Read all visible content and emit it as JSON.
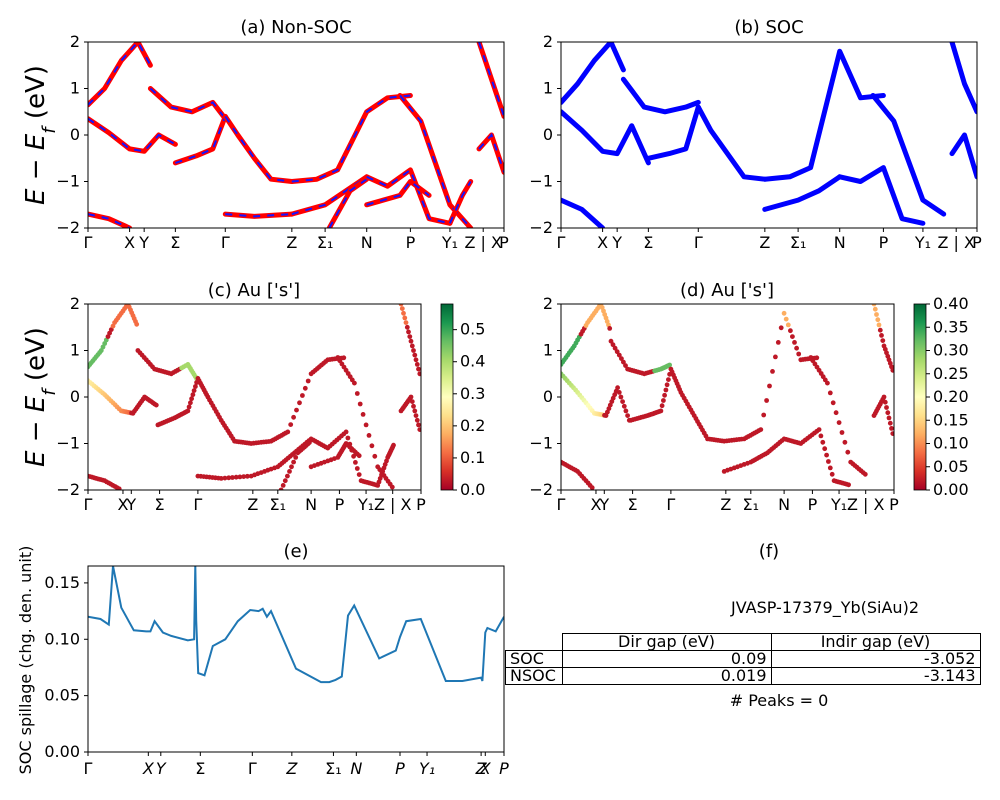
{
  "panel_titles": {
    "a": "(a) Non-SOC",
    "b": "(b) SOC",
    "c": "(c)  Au ['s']",
    "d": "(d) Au ['s']",
    "e": "(e)",
    "f": "(f)"
  },
  "ylabel_band": "E − E_f (eV)",
  "ylabel_spillage": "SOC spillage (chg. den. unit)",
  "k_ticks_band": [
    "Γ",
    "X",
    "Y",
    "Σ",
    "Γ",
    "Z",
    "Σ₁",
    "N",
    "P",
    "Y₁",
    "Z | X",
    "P"
  ],
  "k_ticks_spillage": [
    "Γ",
    "X",
    "Y",
    "Σ",
    "Γ",
    "Z",
    "Σ₁",
    "N",
    "P",
    "Y₁",
    "Z",
    "X",
    "P"
  ],
  "colors": {
    "nonsoc_line": "#ff0000",
    "nonsoc_dash": "#1515ff",
    "soc_line": "#0000ff",
    "spillage_line": "#1f77b4"
  },
  "colorbar_c": {
    "ticks": [
      "0.0",
      "0.1",
      "0.2",
      "0.3",
      "0.4",
      "0.5"
    ],
    "max": 0.58
  },
  "colorbar_d": {
    "ticks": [
      "0.00",
      "0.05",
      "0.10",
      "0.15",
      "0.20",
      "0.25",
      "0.30",
      "0.35",
      "0.40"
    ],
    "max": 0.4
  },
  "panel_f": {
    "material": "JVASP-17379_Yb(SiAu)2",
    "col_headers": [
      "Dir gap (eV)",
      "Indir gap (eV)"
    ],
    "rows": [
      {
        "label": "SOC",
        "dir": "0.09",
        "indir": "-3.052"
      },
      {
        "label": "NSOC",
        "dir": "0.019",
        "indir": "-3.143"
      }
    ],
    "peaks": "# Peaks = 0"
  },
  "chart_data": [
    {
      "type": "line",
      "title": "(a) Non-SOC",
      "ylabel": "E − E_f (eV)",
      "ylim": [
        -2,
        2
      ],
      "yticks": [
        -2,
        -1,
        0,
        1,
        2
      ],
      "x_ticks": [
        0,
        0.1,
        0.135,
        0.21,
        0.33,
        0.49,
        0.57,
        0.67,
        0.775,
        0.87,
        0.92,
        0.94,
        1.0
      ],
      "series": [
        {
          "x": [
            0,
            0.05,
            0.1,
            0.135,
            0.17,
            0.21
          ],
          "y": [
            0.35,
            0.05,
            -0.3,
            -0.35,
            0.0,
            -0.2
          ]
        },
        {
          "x": [
            0,
            0.04,
            0.08,
            0.12,
            0.15
          ],
          "y": [
            0.65,
            1.0,
            1.6,
            2.0,
            1.5
          ]
        },
        {
          "x": [
            0.15,
            0.2,
            0.25,
            0.3,
            0.33
          ],
          "y": [
            1.0,
            0.6,
            0.5,
            0.7,
            0.35
          ]
        },
        {
          "x": [
            0.21,
            0.26,
            0.3,
            0.33
          ],
          "y": [
            -0.6,
            -0.45,
            -0.3,
            0.4
          ]
        },
        {
          "x": [
            0,
            0.05,
            0.1
          ],
          "y": [
            -1.7,
            -1.8,
            -2.0
          ]
        },
        {
          "x": [
            0.33,
            0.4,
            0.49
          ],
          "y": [
            -1.7,
            -1.75,
            -1.7
          ]
        },
        {
          "x": [
            0.33,
            0.36,
            0.4,
            0.44,
            0.49
          ],
          "y": [
            0.4,
            0.0,
            -0.5,
            -0.95,
            -1.0
          ]
        },
        {
          "x": [
            0.49,
            0.55,
            0.6,
            0.67,
            0.72,
            0.775
          ],
          "y": [
            -1.0,
            -0.95,
            -0.75,
            0.5,
            0.8,
            0.85
          ]
        },
        {
          "x": [
            0.49,
            0.57,
            0.62,
            0.67
          ],
          "y": [
            -1.7,
            -1.5,
            -1.2,
            -0.9
          ]
        },
        {
          "x": [
            0.58,
            0.63,
            0.67
          ],
          "y": [
            -2.0,
            -1.2,
            -0.95
          ]
        },
        {
          "x": [
            0.67,
            0.72,
            0.775,
            0.82,
            0.87
          ],
          "y": [
            -0.9,
            -1.1,
            -0.75,
            -1.8,
            -1.9
          ]
        },
        {
          "x": [
            0.67,
            0.75,
            0.775,
            0.82
          ],
          "y": [
            -1.5,
            -1.3,
            -1.0,
            -1.3
          ]
        },
        {
          "x": [
            0.75,
            0.8,
            0.87,
            0.92
          ],
          "y": [
            0.85,
            0.3,
            -1.5,
            -2.0
          ]
        },
        {
          "x": [
            0.87,
            0.9,
            0.92
          ],
          "y": [
            -1.9,
            -1.3,
            -1.0
          ]
        },
        {
          "x": [
            0.94,
            0.97,
            1.0
          ],
          "y": [
            -0.3,
            0.0,
            -0.8
          ]
        },
        {
          "x": [
            0.94,
            0.97,
            1.0
          ],
          "y": [
            2.0,
            1.2,
            0.4
          ]
        }
      ]
    },
    {
      "type": "line",
      "title": "(b) SOC",
      "ylabel": "",
      "ylim": [
        -2,
        2
      ],
      "yticks": [
        -2,
        -1,
        0,
        1,
        2
      ],
      "x_ticks": [
        0,
        0.1,
        0.135,
        0.21,
        0.33,
        0.49,
        0.57,
        0.67,
        0.775,
        0.87,
        0.92,
        0.94,
        1.0
      ],
      "series": [
        {
          "x": [
            0,
            0.05,
            0.1,
            0.135,
            0.17,
            0.21
          ],
          "y": [
            0.5,
            0.1,
            -0.35,
            -0.4,
            0.2,
            -0.6
          ]
        },
        {
          "x": [
            0,
            0.04,
            0.08,
            0.12,
            0.15
          ],
          "y": [
            0.7,
            1.1,
            1.6,
            2.0,
            1.4
          ]
        },
        {
          "x": [
            0.15,
            0.2,
            0.25,
            0.3,
            0.33
          ],
          "y": [
            1.2,
            0.6,
            0.5,
            0.6,
            0.7
          ]
        },
        {
          "x": [
            0.21,
            0.26,
            0.3,
            0.33
          ],
          "y": [
            -0.5,
            -0.4,
            -0.3,
            0.6
          ]
        },
        {
          "x": [
            0,
            0.05,
            0.1
          ],
          "y": [
            -1.4,
            -1.6,
            -2.0
          ]
        },
        {
          "x": [
            0.33,
            0.36,
            0.4,
            0.44,
            0.49
          ],
          "y": [
            0.6,
            0.1,
            -0.4,
            -0.9,
            -0.95
          ]
        },
        {
          "x": [
            0.49,
            0.55,
            0.6,
            0.67,
            0.72,
            0.775
          ],
          "y": [
            -0.95,
            -0.9,
            -0.7,
            1.8,
            0.8,
            0.85
          ]
        },
        {
          "x": [
            0.49,
            0.57,
            0.62,
            0.67
          ],
          "y": [
            -1.6,
            -1.4,
            -1.2,
            -0.9
          ]
        },
        {
          "x": [
            0.67,
            0.72,
            0.775,
            0.82,
            0.87
          ],
          "y": [
            -0.9,
            -1.0,
            -0.7,
            -1.8,
            -1.9
          ]
        },
        {
          "x": [
            0.75,
            0.8,
            0.87,
            0.92
          ],
          "y": [
            0.85,
            0.3,
            -1.4,
            -1.7
          ]
        },
        {
          "x": [
            0.94,
            0.97,
            1.0
          ],
          "y": [
            -0.4,
            0.0,
            -0.9
          ]
        },
        {
          "x": [
            0.94,
            0.97,
            1.0
          ],
          "y": [
            2.0,
            1.1,
            0.5
          ]
        }
      ]
    },
    {
      "type": "scatter",
      "title": "(c)  Au ['s']",
      "ylabel": "E − E_f (eV)",
      "ylim": [
        -2,
        2
      ],
      "color_range": [
        0.0,
        0.58
      ]
    },
    {
      "type": "scatter",
      "title": "(d) Au ['s']",
      "ylabel": "",
      "ylim": [
        -2,
        2
      ],
      "color_range": [
        0.0,
        0.4
      ]
    },
    {
      "type": "line",
      "title": "(e)",
      "ylabel": "SOC spillage (chg. den. unit)",
      "ylim": [
        0.0,
        0.165
      ],
      "yticks": [
        0.0,
        0.05,
        0.1,
        0.15
      ],
      "x": [
        0,
        0.03,
        0.05,
        0.06,
        0.08,
        0.11,
        0.14,
        0.15,
        0.16,
        0.18,
        0.2,
        0.24,
        0.255,
        0.258,
        0.26,
        0.265,
        0.28,
        0.3,
        0.33,
        0.36,
        0.39,
        0.41,
        0.42,
        0.43,
        0.44,
        0.5,
        0.56,
        0.58,
        0.595,
        0.61,
        0.625,
        0.64,
        0.7,
        0.74,
        0.75,
        0.765,
        0.8,
        0.86,
        0.9,
        0.945,
        0.948,
        0.955,
        0.96,
        0.98,
        1.0
      ],
      "y": [
        0.12,
        0.118,
        0.113,
        0.165,
        0.128,
        0.108,
        0.107,
        0.107,
        0.116,
        0.106,
        0.103,
        0.099,
        0.1,
        0.166,
        0.117,
        0.07,
        0.068,
        0.094,
        0.1,
        0.116,
        0.126,
        0.125,
        0.127,
        0.12,
        0.125,
        0.074,
        0.062,
        0.062,
        0.064,
        0.067,
        0.121,
        0.13,
        0.083,
        0.09,
        0.102,
        0.116,
        0.118,
        0.063,
        0.063,
        0.066,
        0.063,
        0.106,
        0.11,
        0.107,
        0.12
      ]
    }
  ]
}
